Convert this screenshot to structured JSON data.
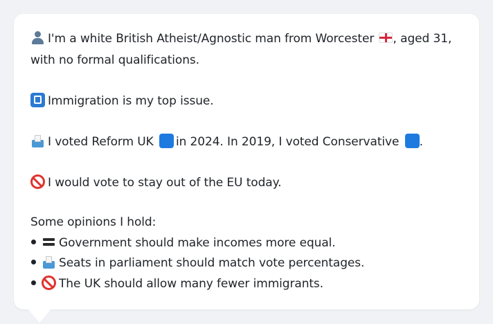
{
  "profile": {
    "intro_line1_a": "I'm a white British Atheist/Agnostic man from Worcester",
    "intro_line1_b": ", aged 31,",
    "intro_line2": "with no formal qualifications.",
    "issue_text": "Immigration is my top issue.",
    "vote_a": "I voted Reform UK",
    "vote_b": "in 2024. In 2019, I voted Conservative",
    "vote_c": ".",
    "eu_text": "I would vote to stay out of the EU today.",
    "opinions_heading": "Some opinions I hold:",
    "opinions": [
      "Government should make incomes more equal.",
      "Seats in parliament should match vote percentages.",
      "The UK should allow many fewer immigrants."
    ]
  },
  "colors": {
    "background": "#f1f2f5",
    "card": "#ffffff",
    "party_swatch": "#1f7ae0",
    "no_entry": "#e0322e"
  },
  "icons": {
    "person": "bust-in-silhouette-icon",
    "flag": "england-flag-icon",
    "issue": "passport-control-icon",
    "vote": "ballot-box-icon",
    "eu": "no-entry-icon",
    "equal": "heavy-equals-icon"
  }
}
